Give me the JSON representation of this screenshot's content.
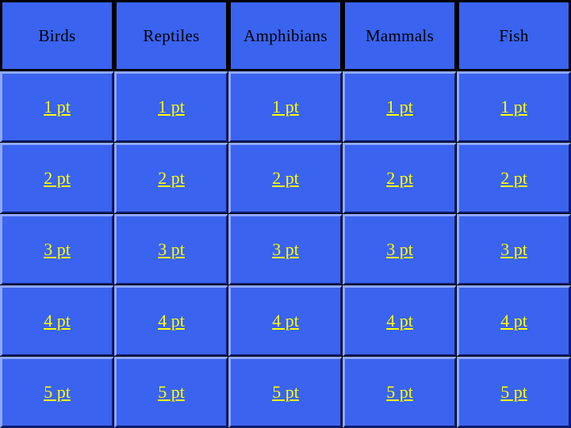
{
  "categories": [
    "Birds",
    "Reptiles",
    "Amphibians",
    "Mammals",
    "Fish"
  ],
  "rows": [
    [
      "1 pt",
      "1 pt",
      "1 pt",
      "1 pt",
      "1 pt"
    ],
    [
      "2 pt",
      "2 pt",
      "2 pt",
      "2 pt",
      "2 pt"
    ],
    [
      "3 pt",
      "3 pt",
      "3 pt",
      "3 pt",
      "3 pt"
    ],
    [
      "4 pt",
      "4 pt",
      "4 pt",
      "4 pt",
      "4 pt"
    ],
    [
      "5 pt",
      "5 pt",
      "5 pt",
      "5 pt",
      "5 pt"
    ]
  ],
  "colors": {
    "tile_background": "#3a63ef",
    "header_text": "#000000",
    "link_text": "#ffff00",
    "grid_lines": "#000000"
  }
}
